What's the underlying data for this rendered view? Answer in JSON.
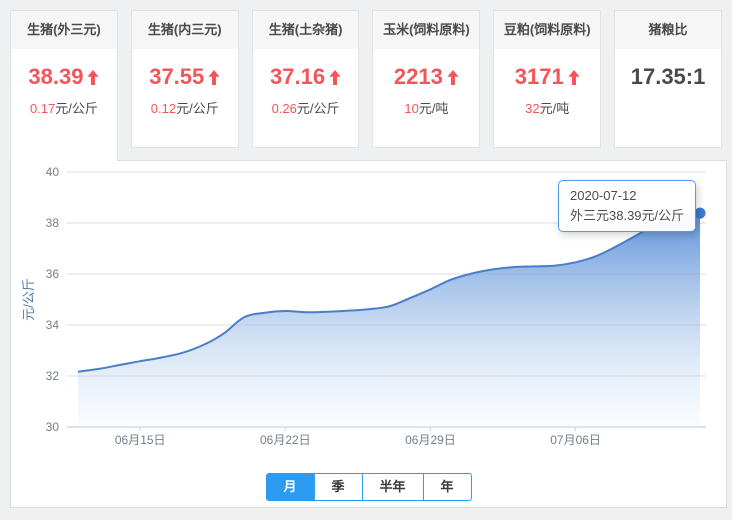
{
  "cards": [
    {
      "title": "生猪(外三元)",
      "value": "38.39",
      "change": "0.17",
      "unit": "元/公斤",
      "trend": "up"
    },
    {
      "title": "生猪(内三元)",
      "value": "37.55",
      "change": "0.12",
      "unit": "元/公斤",
      "trend": "up"
    },
    {
      "title": "生猪(土杂猪)",
      "value": "37.16",
      "change": "0.26",
      "unit": "元/公斤",
      "trend": "up"
    },
    {
      "title": "玉米(饲料原料)",
      "value": "2213",
      "change": "10",
      "unit": "元/吨",
      "trend": "up"
    },
    {
      "title": "豆粕(饲料原料)",
      "value": "3171",
      "change": "32",
      "unit": "元/吨",
      "trend": "up"
    },
    {
      "title": "猪粮比",
      "value": "17.35:1",
      "trend": "none"
    }
  ],
  "tabs": [
    {
      "label": "月",
      "active": true
    },
    {
      "label": "季",
      "active": false
    },
    {
      "label": "半年",
      "active": false
    },
    {
      "label": "年",
      "active": false
    }
  ],
  "chart_data": {
    "type": "area",
    "series_name": "外三元",
    "title": "",
    "ylabel": "元/公斤",
    "ylim": [
      30,
      40
    ],
    "yticks": [
      30,
      32,
      34,
      36,
      38,
      40
    ],
    "start_date": "2020-06-12",
    "end_date": "2020-07-12",
    "x_interval": "daily",
    "values": [
      32.17,
      32.28,
      32.43,
      32.58,
      32.72,
      32.9,
      33.2,
      33.65,
      34.3,
      34.48,
      34.55,
      34.5,
      34.52,
      34.56,
      34.62,
      34.73,
      35.05,
      35.4,
      35.78,
      36.02,
      36.18,
      36.27,
      36.3,
      36.33,
      36.46,
      36.7,
      37.1,
      37.55,
      38.0,
      38.25,
      38.39
    ],
    "xticklabels": [
      "06月15日",
      "06月22日",
      "06月29日",
      "07月06日"
    ],
    "xtick_day_indices": [
      3,
      10,
      17,
      24
    ],
    "grid": true,
    "smooth": true,
    "tooltip": {
      "date": "2020-07-12",
      "text": "外三元38.39元/公斤"
    }
  },
  "colors": {
    "accent_red": "#f4545a",
    "value_dark": "#4a4a4a",
    "tab_blue": "#2b9bf2",
    "line_blue": "#4a7ec9",
    "dot_blue": "#3b79d2",
    "area_top": "#4d86d6",
    "area_mid": "#9fbfe8",
    "area_bottom": "#edf4fb",
    "grid_gray": "#dcdcdc",
    "axis_line_blue": "#aac6e4",
    "xtick_mark": "#c9d2dc",
    "axis_label_gray": "#75808d",
    "axis_name_blue": "#567ca8",
    "tooltip_border": "#4f9bf0"
  }
}
